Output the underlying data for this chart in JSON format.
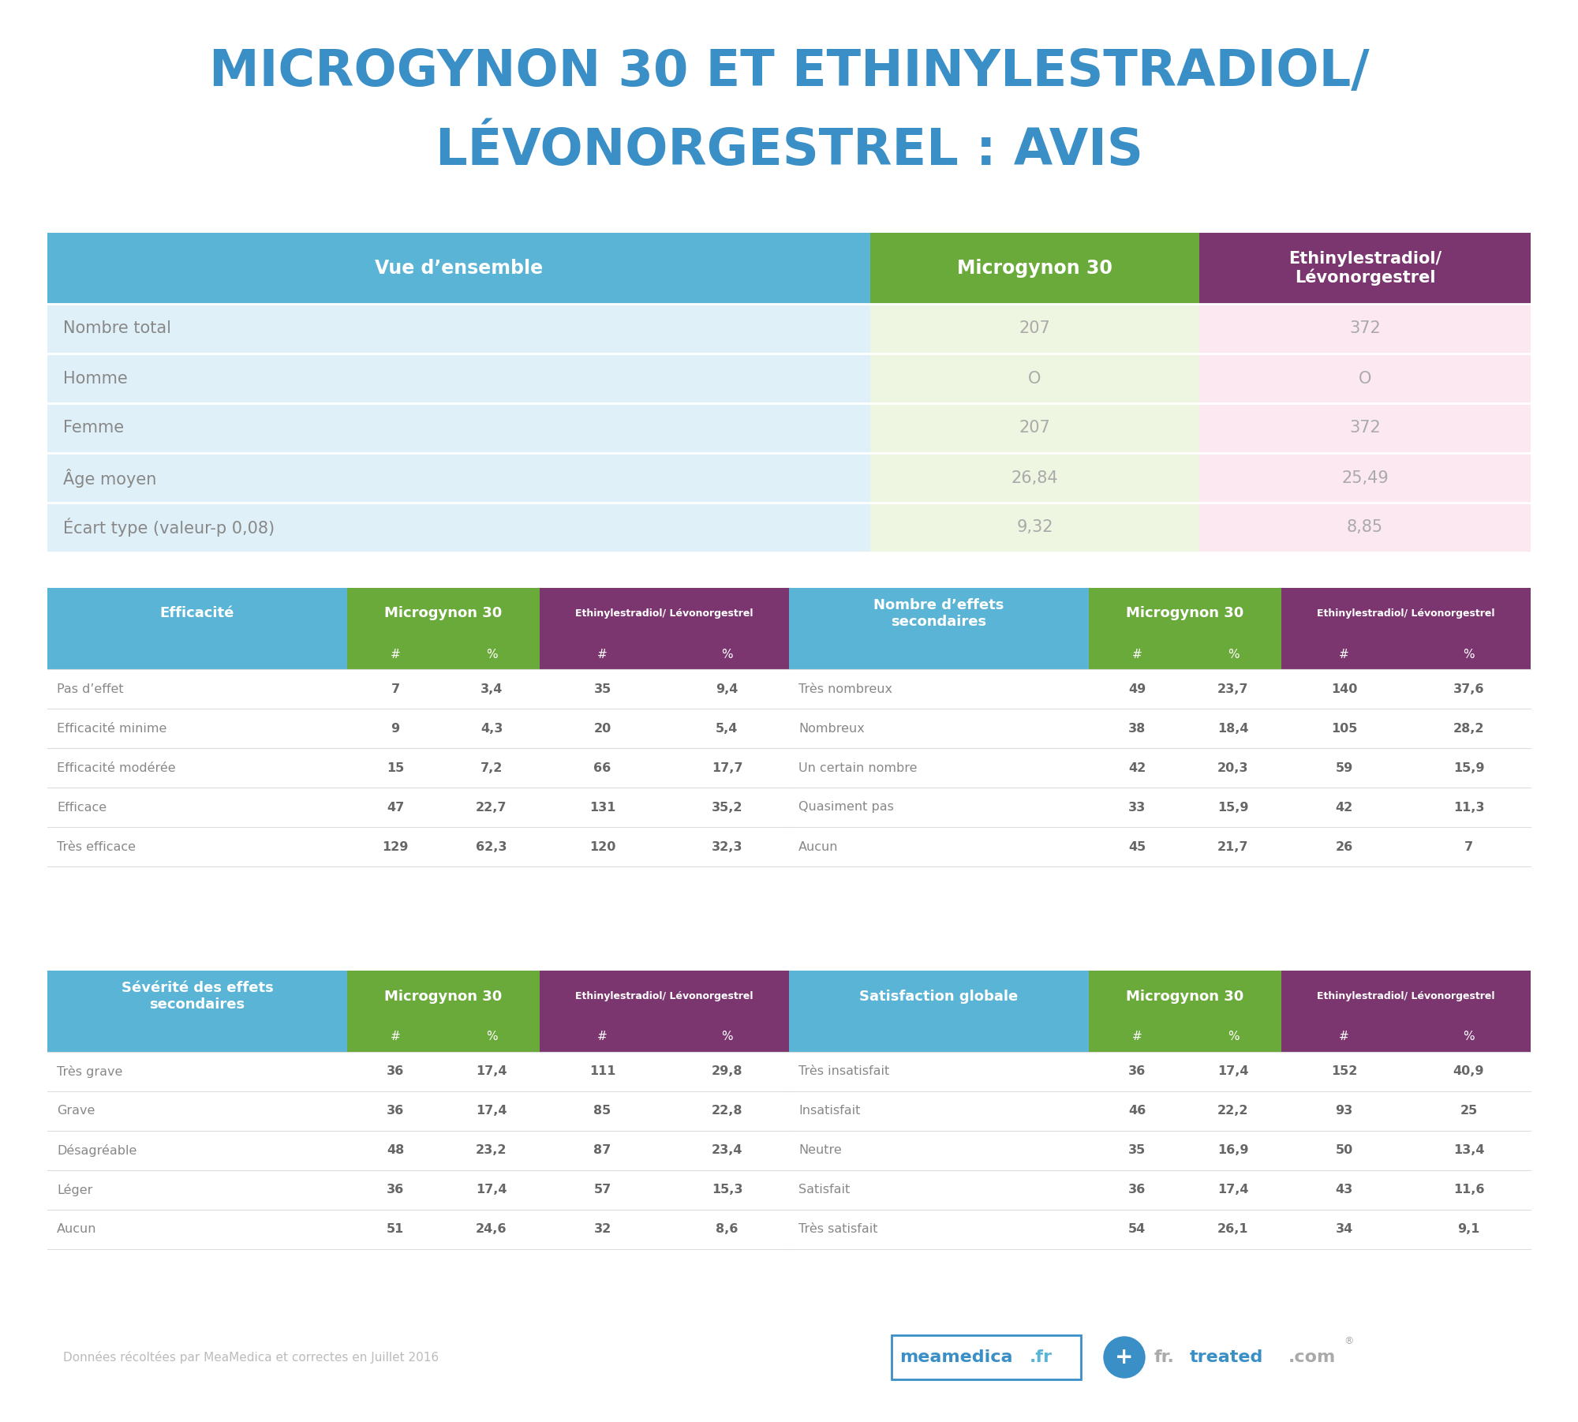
{
  "title_line1": "MICROGYNON 30 ET ETHINYLESTRADIOL/",
  "title_line2": "LÉVONORGESTREL : AVIS",
  "title_color": "#3a8fc7",
  "bg_color": "#ffffff",
  "overview_header": [
    "Vue d’ensemble",
    "Microgynon 30",
    "Ethinylestradiol/\nLévonorgestrel"
  ],
  "overview_header_colors": [
    "#5ab4d6",
    "#6aaa3a",
    "#7b3670"
  ],
  "overview_rows": [
    [
      "Nombre total",
      "207",
      "372"
    ],
    [
      "Homme",
      "O",
      "O"
    ],
    [
      "Femme",
      "207",
      "372"
    ],
    [
      "Âge moyen",
      "26,84",
      "25,49"
    ],
    [
      "Écart type (valeur-p 0,08)",
      "9,32",
      "8,85"
    ]
  ],
  "overview_row_bg_left": "#dff0f8",
  "overview_row_bg_green": "#eef5e0",
  "overview_row_bg_pink": "#fce8f0",
  "efficacite_header": "Efficacité",
  "efficacite_rows": [
    [
      "Pas d’effet",
      "7",
      "3,4",
      "35",
      "9,4"
    ],
    [
      "Efficacité minime",
      "9",
      "4,3",
      "20",
      "5,4"
    ],
    [
      "Efficacité modérée",
      "15",
      "7,2",
      "66",
      "17,7"
    ],
    [
      "Efficace",
      "47",
      "22,7",
      "131",
      "35,2"
    ],
    [
      "Très efficace",
      "129",
      "62,3",
      "120",
      "32,3"
    ]
  ],
  "effets_header": "Nombre d’effets\nsecondaires",
  "effets_rows": [
    [
      "Très nombreux",
      "49",
      "23,7",
      "140",
      "37,6"
    ],
    [
      "Nombreux",
      "38",
      "18,4",
      "105",
      "28,2"
    ],
    [
      "Un certain nombre",
      "42",
      "20,3",
      "59",
      "15,9"
    ],
    [
      "Quasiment pas",
      "33",
      "15,9",
      "42",
      "11,3"
    ],
    [
      "Aucun",
      "45",
      "21,7",
      "26",
      "7"
    ]
  ],
  "severite_header": "Sévérité des effets\nsecondaires",
  "severite_rows": [
    [
      "Très grave",
      "36",
      "17,4",
      "111",
      "29,8"
    ],
    [
      "Grave",
      "36",
      "17,4",
      "85",
      "22,8"
    ],
    [
      "Désagréable",
      "48",
      "23,2",
      "87",
      "23,4"
    ],
    [
      "Léger",
      "36",
      "17,4",
      "57",
      "15,3"
    ],
    [
      "Aucun",
      "51",
      "24,6",
      "32",
      "8,6"
    ]
  ],
  "satisfaction_header": "Satisfaction globale",
  "satisfaction_rows": [
    [
      "Très insatisfait",
      "36",
      "17,4",
      "152",
      "40,9"
    ],
    [
      "Insatisfait",
      "46",
      "22,2",
      "93",
      "25"
    ],
    [
      "Neutre",
      "35",
      "16,9",
      "50",
      "13,4"
    ],
    [
      "Satisfait",
      "36",
      "17,4",
      "43",
      "11,6"
    ],
    [
      "Très satisfait",
      "54",
      "26,1",
      "34",
      "9,1"
    ]
  ],
  "col_header_green": "#6aaa3a",
  "col_header_purple": "#7b3670",
  "table_header_blue": "#5ab4d6",
  "footer_text": "Données récoltées par MeaMedica et correctes en Juillet 2016"
}
